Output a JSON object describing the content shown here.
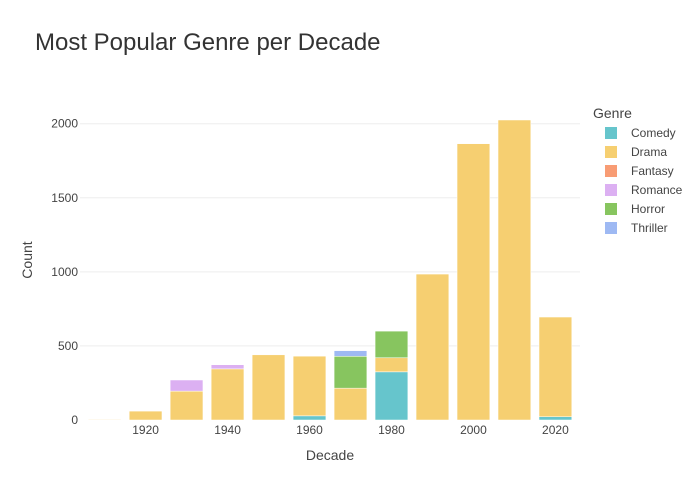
{
  "chart_data": {
    "type": "bar",
    "stacked": true,
    "title": "Most Popular Genre per Decade",
    "xlabel": "Decade",
    "ylabel": "Count",
    "legend_title": "Genre",
    "legend_position": "right",
    "grid": true,
    "ylim": [
      0,
      2160
    ],
    "xlim": [
      1904,
      2026
    ],
    "x": [
      1910,
      1920,
      1930,
      1940,
      1950,
      1960,
      1970,
      1980,
      1990,
      2000,
      2010,
      2020
    ],
    "x_ticks": [
      "1920",
      "1940",
      "1960",
      "1980",
      "2000",
      "2020"
    ],
    "x_tick_values": [
      1920,
      1940,
      1960,
      1980,
      2000,
      2020
    ],
    "y_ticks": [
      "0",
      "500",
      "1000",
      "1500",
      "2000"
    ],
    "y_tick_values": [
      0,
      500,
      1000,
      1500,
      2000
    ],
    "series": [
      {
        "name": "Comedy",
        "color": "#66c5cc",
        "values": [
          0,
          0,
          0,
          0,
          0,
          28,
          0,
          325,
          0,
          0,
          0,
          22
        ]
      },
      {
        "name": "Drama",
        "color": "#f6cf71",
        "values": [
          4,
          60,
          195,
          345,
          440,
          403,
          215,
          95,
          985,
          1865,
          2025,
          673
        ]
      },
      {
        "name": "Fantasy",
        "color": "#f89c74",
        "values": [
          0,
          0,
          0,
          0,
          0,
          0,
          0,
          0,
          0,
          0,
          0,
          0
        ]
      },
      {
        "name": "Romance",
        "color": "#dcb0f2",
        "values": [
          0,
          0,
          75,
          28,
          0,
          0,
          0,
          0,
          0,
          0,
          0,
          0
        ]
      },
      {
        "name": "Horror",
        "color": "#87c55f",
        "values": [
          0,
          0,
          0,
          0,
          0,
          0,
          215,
          180,
          0,
          0,
          0,
          0
        ]
      },
      {
        "name": "Thriller",
        "color": "#9eb9f3",
        "values": [
          0,
          0,
          0,
          0,
          0,
          0,
          38,
          0,
          0,
          0,
          0,
          0
        ]
      }
    ]
  }
}
